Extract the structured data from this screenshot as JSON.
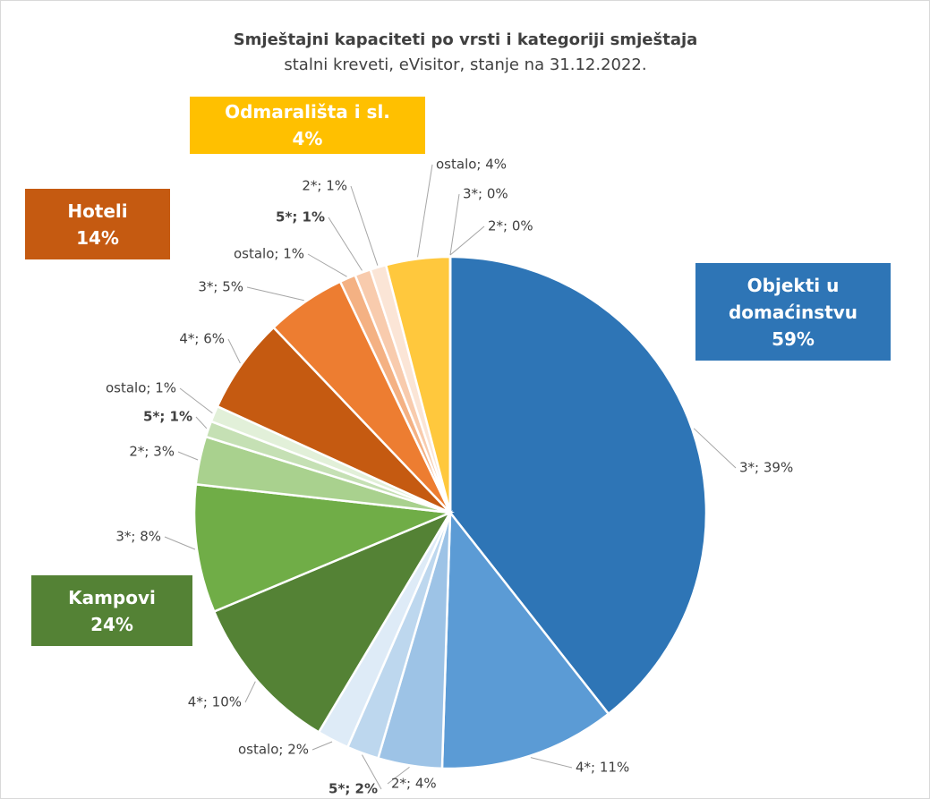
{
  "chart_data": {
    "type": "pie",
    "title": "Smještajni kapaciteti po vrsti i kategoriji smještaja",
    "subtitle": "stalni kreveti, eVisitor, stanje na 31.12.2022.",
    "values": [
      39,
      11,
      4,
      2,
      2,
      10,
      8,
      3,
      1,
      1,
      6,
      5,
      1,
      1,
      1,
      4,
      0,
      0
    ],
    "value_labels": [
      "3*; 39%",
      "4*; 11%",
      "2*; 4%",
      "5*; 2%",
      "ostalo; 2%",
      "4*; 10%",
      "3*; 8%",
      "2*; 3%",
      "5*; 1%",
      "ostalo; 1%",
      "4*; 6%",
      "3*; 5%",
      "ostalo; 1%",
      "5*; 1%",
      "2*; 1%",
      "ostalo; 4%",
      "3*; 0%",
      "2*; 0%"
    ],
    "colors": [
      "#2e75b6",
      "#5b9bd5",
      "#9dc3e6",
      "#bdd7ee",
      "#deebf7",
      "#548235",
      "#70ad47",
      "#a9d18e",
      "#c5e0b4",
      "#e2f0d9",
      "#c55a11",
      "#ed7d31",
      "#f4b183",
      "#f8cbad",
      "#fbe5d6",
      "#ffc83d",
      "#ffe699",
      "#fff2cc"
    ],
    "bold_labels": [
      3,
      8,
      13
    ],
    "groups": [
      {
        "name": "Objekti u domaćinstvu",
        "value": 59,
        "value_label": "59%",
        "color": "#2e75b6"
      },
      {
        "name": "Kampovi",
        "value": 24,
        "value_label": "24%",
        "color": "#548235"
      },
      {
        "name": "Hoteli",
        "value": 14,
        "value_label": "14%",
        "color": "#c55a11"
      },
      {
        "name": "Odmarališta i sl.",
        "value": 4,
        "value_label": "4%",
        "color": "#ffc000"
      }
    ]
  }
}
